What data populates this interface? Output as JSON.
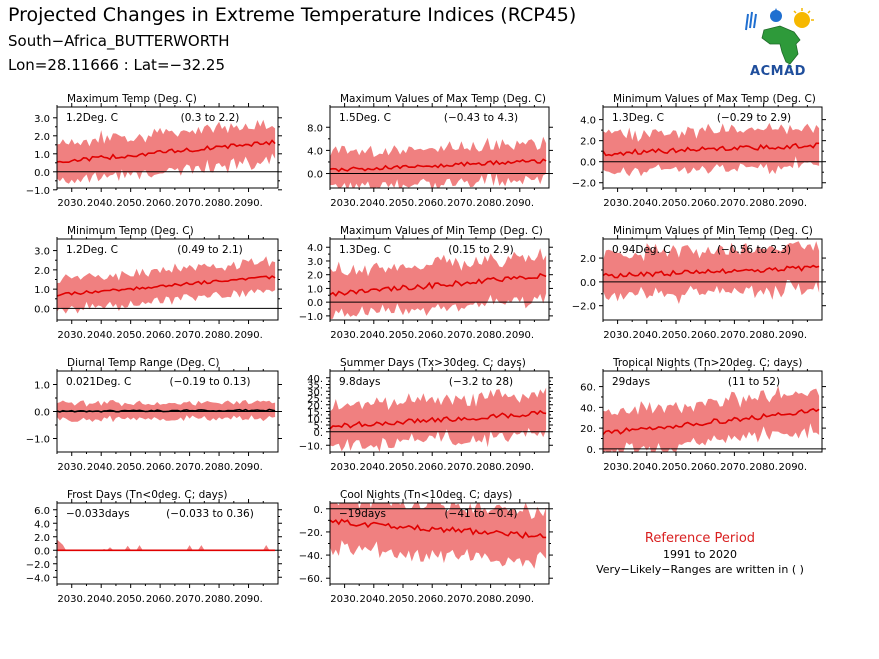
{
  "header": {
    "title": "Projected Changes in Extreme Temperature Indices (RCP45)",
    "location": "South−Africa_BUTTERWORTH",
    "coords": "Lon=28.11666 : Lat=−32.25"
  },
  "logo": {
    "text": "ACMAD",
    "icon": "acmad-africa-logo-icon"
  },
  "reference": {
    "title": "Reference Period",
    "years": "1991 to 2020",
    "note": "Very−Likely−Ranges are written in ( )"
  },
  "colors": {
    "band": "#f08080",
    "line": "#e00000",
    "black_line": "#000000",
    "zero": "#000000"
  },
  "chart_data": [
    {
      "type": "area",
      "title": "Maximum Temp (Deg. C)",
      "mean_label": "1.2Deg. C",
      "range_label": "(0.3 to 2.2)",
      "x_range": [
        2025,
        2100
      ],
      "x_ticks": [
        2030,
        2040,
        2050,
        2060,
        2070,
        2080,
        2090
      ],
      "x_tick_labels": [
        "2030.",
        "2040.",
        "2050.",
        "2060.",
        "2070.",
        "2080.",
        "2090."
      ],
      "ylim": [
        -0.9,
        3.6
      ],
      "y_ticks": [
        -1.0,
        0.0,
        1.0,
        2.0,
        3.0
      ],
      "y_tick_labels": [
        "−1.0",
        "0.0",
        "1.0",
        "2.0",
        "3.0"
      ],
      "series": [
        {
          "start": 0.55,
          "end": 1.65,
          "spread": 0.9,
          "noise": 0.12,
          "bnoise": 0.35
        }
      ]
    },
    {
      "type": "area",
      "title": "Maximum Values of Max Temp (Deg. C)",
      "mean_label": "1.5Deg. C",
      "range_label": "(−0.43 to 4.3)",
      "x_range": [
        2025,
        2100
      ],
      "x_ticks": [
        2030,
        2040,
        2050,
        2060,
        2070,
        2080,
        2090
      ],
      "x_tick_labels": [
        "2030.",
        "2040.",
        "2050.",
        "2060.",
        "2070.",
        "2080.",
        "2090."
      ],
      "ylim": [
        -2.5,
        11.5
      ],
      "y_ticks": [
        0.0,
        4.0,
        8.0
      ],
      "y_tick_labels": [
        "0.0",
        "4.0",
        "8.0"
      ],
      "series": [
        {
          "start": 0.6,
          "end": 2.2,
          "spread": 2.3,
          "noise": 0.35,
          "bnoise": 1.4
        }
      ]
    },
    {
      "type": "area",
      "title": "Minimum Values of Max Temp (Deg. C)",
      "mean_label": "1.3Deg. C",
      "range_label": "(−0.29 to 2.9)",
      "x_range": [
        2025,
        2100
      ],
      "x_ticks": [
        2030,
        2040,
        2050,
        2060,
        2070,
        2080,
        2090
      ],
      "x_tick_labels": [
        "2030.",
        "2040.",
        "2050.",
        "2060.",
        "2070.",
        "2080.",
        "2090."
      ],
      "ylim": [
        -2.5,
        5.2
      ],
      "y_ticks": [
        -2.0,
        0.0,
        2.0,
        4.0
      ],
      "y_tick_labels": [
        "−2.0",
        "0.0",
        "2.0",
        "4.0"
      ],
      "series": [
        {
          "start": 0.8,
          "end": 1.6,
          "spread": 1.5,
          "noise": 0.25,
          "bnoise": 0.6
        }
      ]
    },
    {
      "type": "area",
      "title": "Minimum Temp (Deg. C)",
      "mean_label": "1.2Deg. C",
      "range_label": "(0.49 to 2.1)",
      "x_range": [
        2025,
        2100
      ],
      "x_ticks": [
        2030,
        2040,
        2050,
        2060,
        2070,
        2080,
        2090
      ],
      "x_tick_labels": [
        "2030.",
        "2040.",
        "2050.",
        "2060.",
        "2070.",
        "2080.",
        "2090."
      ],
      "ylim": [
        -0.6,
        3.6
      ],
      "y_ticks": [
        0.0,
        1.0,
        2.0,
        3.0
      ],
      "y_tick_labels": [
        "0.0",
        "1.0",
        "2.0",
        "3.0"
      ],
      "series": [
        {
          "start": 0.7,
          "end": 1.65,
          "spread": 0.65,
          "noise": 0.08,
          "bnoise": 0.25
        }
      ]
    },
    {
      "type": "area",
      "title": "Maximum Values of Min Temp (Deg. C)",
      "mean_label": "1.3Deg. C",
      "range_label": "(0.15 to 2.9)",
      "x_range": [
        2025,
        2100
      ],
      "x_ticks": [
        2030,
        2040,
        2050,
        2060,
        2070,
        2080,
        2090
      ],
      "x_tick_labels": [
        "2030.",
        "2040.",
        "2050.",
        "2060.",
        "2070.",
        "2080.",
        "2090."
      ],
      "ylim": [
        -1.3,
        4.6
      ],
      "y_ticks": [
        -1.0,
        0.0,
        1.0,
        2.0,
        3.0,
        4.0
      ],
      "y_tick_labels": [
        "−1.0",
        "0.0",
        "1.0",
        "2.0",
        "3.0",
        "4.0"
      ],
      "series": [
        {
          "start": 0.6,
          "end": 1.9,
          "spread": 1.3,
          "noise": 0.2,
          "bnoise": 0.6
        }
      ]
    },
    {
      "type": "area",
      "title": "Minimum Values of Min Temp (Deg. C)",
      "mean_label": "0.94Deg. C",
      "range_label": "(−0.56 to 2.3)",
      "x_range": [
        2025,
        2100
      ],
      "x_ticks": [
        2030,
        2040,
        2050,
        2060,
        2070,
        2080,
        2090
      ],
      "x_tick_labels": [
        "2030.",
        "2040.",
        "2050.",
        "2060.",
        "2070.",
        "2080.",
        "2090."
      ],
      "ylim": [
        -3.2,
        3.6
      ],
      "y_ticks": [
        -2.0,
        0.0,
        2.0
      ],
      "y_tick_labels": [
        "−2.0",
        "0.0",
        "2.0"
      ],
      "series": [
        {
          "start": 0.5,
          "end": 1.2,
          "spread": 1.5,
          "noise": 0.2,
          "bnoise": 0.6
        }
      ]
    },
    {
      "type": "area",
      "title": "Diurnal Temp Range (Deg. C)",
      "mean_label": "0.021Deg. C",
      "range_label": "(−0.19 to 0.13)",
      "x_range": [
        2025,
        2100
      ],
      "x_ticks": [
        2030,
        2040,
        2050,
        2060,
        2070,
        2080,
        2090
      ],
      "x_tick_labels": [
        "2030.",
        "2040.",
        "2050.",
        "2060.",
        "2070.",
        "2080.",
        "2090."
      ],
      "ylim": [
        -1.5,
        1.5
      ],
      "y_ticks": [
        -1.0,
        0.0,
        1.0
      ],
      "y_tick_labels": [
        "−1.0",
        "0.0",
        "1.0"
      ],
      "series": [
        {
          "start": 0.0,
          "end": 0.05,
          "spread": 0.22,
          "noise": 0.03,
          "bnoise": 0.15,
          "line_color": "black"
        }
      ]
    },
    {
      "type": "area",
      "title": "Summer Days (Tx>30deg. C; days)",
      "mean_label": "9.8days",
      "range_label": "(−3.2 to 28)",
      "x_range": [
        2025,
        2100
      ],
      "x_ticks": [
        2030,
        2040,
        2050,
        2060,
        2070,
        2080,
        2090
      ],
      "x_tick_labels": [
        "2030.",
        "2040.",
        "2050.",
        "2060.",
        "2070.",
        "2080.",
        "2090."
      ],
      "ylim": [
        -15,
        45
      ],
      "y_ticks": [
        -10,
        0,
        5,
        10,
        15,
        20,
        25,
        30,
        35,
        40
      ],
      "y_tick_labels": [
        "−10.",
        "0.",
        "5.",
        "10.",
        "15.",
        "20.",
        "25.",
        "30.",
        "35.",
        "40."
      ],
      "series": [
        {
          "start": 4,
          "end": 14,
          "spread": 12,
          "noise": 2,
          "bnoise": 6
        }
      ]
    },
    {
      "type": "area",
      "title": "Tropical Nights (Tn>20deg. C; days)",
      "mean_label": "29days",
      "range_label": "(11 to 52)",
      "x_range": [
        2025,
        2100
      ],
      "x_ticks": [
        2030,
        2040,
        2050,
        2060,
        2070,
        2080,
        2090
      ],
      "x_tick_labels": [
        "2030.",
        "2040.",
        "2050.",
        "2060.",
        "2070.",
        "2080.",
        "2090."
      ],
      "ylim": [
        -3,
        75
      ],
      "y_ticks": [
        0,
        20,
        40,
        60
      ],
      "y_tick_labels": [
        "0.",
        "20.",
        "40.",
        "60."
      ],
      "series": [
        {
          "start": 15,
          "end": 37,
          "spread": 16,
          "noise": 2.5,
          "bnoise": 7
        }
      ]
    },
    {
      "type": "area",
      "title": "Frost Days (Tn<0deg. C; days)",
      "mean_label": "−0.033days",
      "range_label": "(−0.033 to 0.36)",
      "x_range": [
        2025,
        2100
      ],
      "x_ticks": [
        2030,
        2040,
        2050,
        2060,
        2070,
        2080,
        2090
      ],
      "x_tick_labels": [
        "2030.",
        "2040.",
        "2050.",
        "2060.",
        "2070.",
        "2080.",
        "2090."
      ],
      "ylim": [
        -5.0,
        7.0
      ],
      "y_ticks": [
        -4.0,
        -2.0,
        0.0,
        2.0,
        4.0,
        6.0
      ],
      "y_tick_labels": [
        "−4.0",
        "−2.0",
        "0.0",
        "2.0",
        "4.0",
        "6.0"
      ],
      "series": [
        {
          "start": 0.0,
          "end": 0.0,
          "spread": 0.0,
          "noise": 0.0,
          "bnoise": 0.0,
          "frost": true
        }
      ]
    },
    {
      "type": "area",
      "title": "Cool Nights (Tn<10deg. C; days)",
      "mean_label": "−19days",
      "range_label": "(−41 to −0.4)",
      "x_range": [
        2025,
        2100
      ],
      "x_ticks": [
        2030,
        2040,
        2050,
        2060,
        2070,
        2080,
        2090
      ],
      "x_tick_labels": [
        "2030.",
        "2040.",
        "2050.",
        "2060.",
        "2070.",
        "2080.",
        "2090."
      ],
      "ylim": [
        -65,
        5
      ],
      "y_ticks": [
        -60,
        -40,
        -20,
        0
      ],
      "y_tick_labels": [
        "−60.",
        "−40.",
        "−20.",
        "0."
      ],
      "series": [
        {
          "start": -11,
          "end": -24,
          "spread": 18,
          "noise": 2.5,
          "bnoise": 8
        }
      ]
    }
  ]
}
